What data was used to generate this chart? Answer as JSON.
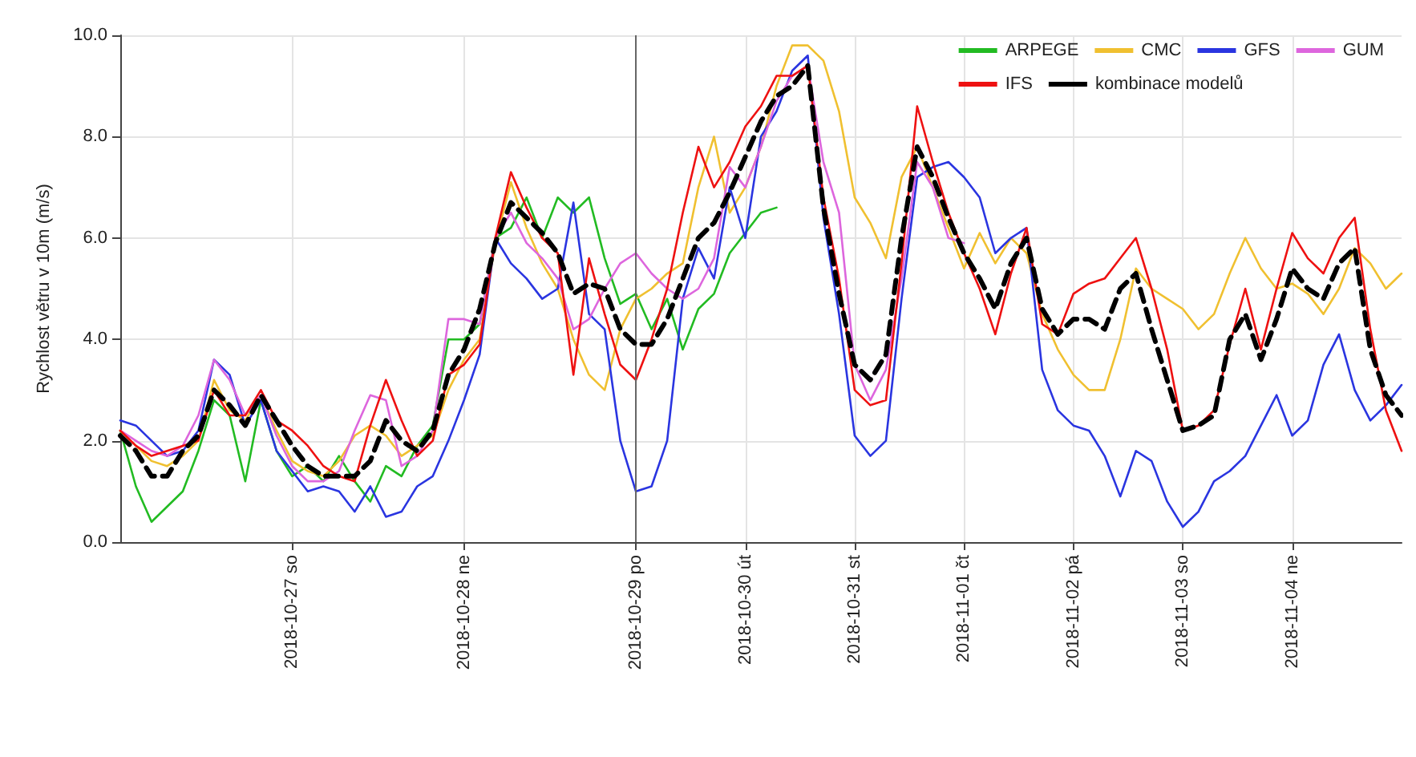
{
  "chart_data": {
    "type": "line",
    "ylabel": "Rychlost větru v 10m (m/s)",
    "categories": [
      null,
      null,
      null,
      null,
      null,
      null,
      null,
      null,
      null,
      null,
      null,
      "2018-10-27 so",
      null,
      null,
      null,
      null,
      null,
      null,
      null,
      null,
      null,
      null,
      "2018-10-28 ne",
      null,
      null,
      null,
      null,
      null,
      null,
      null,
      null,
      null,
      null,
      "2018-10-29 po",
      null,
      null,
      null,
      null,
      null,
      null,
      "2018-10-30 út",
      null,
      null,
      null,
      null,
      null,
      null,
      "2018-10-31 st",
      null,
      null,
      null,
      null,
      null,
      null,
      "2018-11-01 čt",
      null,
      null,
      null,
      null,
      null,
      null,
      "2018-11-02 pá",
      null,
      null,
      null,
      null,
      null,
      null,
      "2018-11-03 so",
      null,
      null,
      null,
      null,
      null,
      null,
      "2018-11-04 ne",
      null,
      null,
      null,
      null,
      null,
      null,
      null
    ],
    "series": [
      {
        "name": "ARPEGE",
        "color": "#22bb22",
        "values": [
          2.2,
          1.1,
          0.4,
          0.7,
          1.0,
          1.8,
          2.8,
          2.5,
          1.2,
          2.8,
          1.8,
          1.3,
          1.5,
          1.2,
          1.7,
          1.2,
          0.8,
          1.5,
          1.3,
          1.9,
          2.3,
          4.0,
          4.0,
          4.3,
          6.0,
          6.2,
          6.8,
          6.0,
          6.8,
          6.5,
          6.8,
          5.6,
          4.7,
          4.9,
          4.2,
          4.8,
          3.8,
          4.6,
          4.9,
          5.7,
          6.1,
          6.5,
          6.6,
          null,
          null,
          null,
          null,
          null,
          null,
          null,
          null,
          null,
          null,
          null,
          null,
          null,
          null,
          null,
          null,
          null,
          null,
          null,
          null,
          null,
          null,
          null,
          null,
          null,
          null,
          null,
          null,
          null,
          null,
          null,
          null,
          null,
          null,
          null,
          null,
          null,
          null,
          null,
          null
        ]
      },
      {
        "name": "CMC",
        "color": "#f0c030",
        "values": [
          2.2,
          1.9,
          1.6,
          1.5,
          1.7,
          2.0,
          3.2,
          2.6,
          2.4,
          2.9,
          2.2,
          1.6,
          1.4,
          1.3,
          1.6,
          2.1,
          2.3,
          2.1,
          1.7,
          1.9,
          2.1,
          3.0,
          3.6,
          4.0,
          5.9,
          7.1,
          6.2,
          5.5,
          5.0,
          4.0,
          3.3,
          3.0,
          4.2,
          4.8,
          5.0,
          5.3,
          5.5,
          7.0,
          8.0,
          6.5,
          7.0,
          7.8,
          9.0,
          9.8,
          9.8,
          9.5,
          8.5,
          6.8,
          6.3,
          5.6,
          7.2,
          7.8,
          7.0,
          6.2,
          5.4,
          6.1,
          5.5,
          6.0,
          5.7,
          4.5,
          3.8,
          3.3,
          3.0,
          3.0,
          4.0,
          5.4,
          5.0,
          4.8,
          4.6,
          4.2,
          4.5,
          5.3,
          6.0,
          5.4,
          5.0,
          5.1,
          4.9,
          4.5,
          5.0,
          5.8,
          5.5,
          5.0,
          5.3
        ]
      },
      {
        "name": "GFS",
        "color": "#2a35e0",
        "values": [
          2.4,
          2.3,
          2.0,
          1.7,
          1.8,
          2.2,
          3.6,
          3.3,
          2.3,
          2.8,
          1.8,
          1.4,
          1.0,
          1.1,
          1.0,
          0.6,
          1.1,
          0.5,
          0.6,
          1.1,
          1.3,
          2.0,
          2.8,
          3.7,
          6.0,
          5.5,
          5.2,
          4.8,
          5.0,
          6.7,
          4.5,
          4.2,
          2.0,
          1.0,
          1.1,
          2.0,
          4.8,
          5.8,
          5.2,
          7.0,
          6.0,
          8.0,
          8.5,
          9.3,
          9.6,
          6.4,
          4.5,
          2.1,
          1.7,
          2.0,
          4.8,
          7.2,
          7.4,
          7.5,
          7.2,
          6.8,
          5.7,
          6.0,
          6.2,
          3.4,
          2.6,
          2.3,
          2.2,
          1.7,
          0.9,
          1.8,
          1.6,
          0.8,
          0.3,
          0.6,
          1.2,
          1.4,
          1.7,
          2.3,
          2.9,
          2.1,
          2.4,
          3.5,
          4.1,
          3.0,
          2.4,
          2.7,
          3.1
        ]
      },
      {
        "name": "GUM",
        "color": "#dd66dd",
        "values": [
          2.2,
          2.0,
          1.8,
          1.7,
          1.9,
          2.5,
          3.6,
          3.2,
          2.5,
          2.9,
          2.1,
          1.5,
          1.2,
          1.2,
          1.4,
          2.2,
          2.9,
          2.8,
          1.5,
          1.7,
          2.2,
          4.4,
          4.4,
          4.3,
          6.0,
          6.5,
          5.9,
          5.6,
          5.2,
          4.2,
          4.4,
          5.0,
          5.5,
          5.7,
          5.3,
          5.0,
          4.8,
          5.0,
          5.6,
          7.4,
          7.0,
          7.8,
          8.7,
          9.2,
          9.4,
          7.5,
          6.5,
          3.5,
          2.8,
          3.4,
          5.2,
          7.5,
          7.0,
          6.0,
          5.9,
          null,
          null,
          null,
          null,
          null,
          null,
          null,
          null,
          null,
          null,
          null,
          null,
          null,
          null,
          null,
          null,
          null,
          null,
          null,
          null,
          null,
          null,
          null,
          null,
          null,
          null,
          null,
          null
        ]
      },
      {
        "name": "IFS",
        "color": "#ee1111",
        "values": [
          2.2,
          1.9,
          1.7,
          1.8,
          1.9,
          2.0,
          3.0,
          2.5,
          2.5,
          3.0,
          2.4,
          2.2,
          1.9,
          1.5,
          1.3,
          1.2,
          2.3,
          3.2,
          2.4,
          1.7,
          2.0,
          3.3,
          3.5,
          3.9,
          6.0,
          7.3,
          6.6,
          6.0,
          5.7,
          3.3,
          5.6,
          4.5,
          3.5,
          3.2,
          4.0,
          5.0,
          6.5,
          7.8,
          7.0,
          7.5,
          8.2,
          8.6,
          9.2,
          9.2,
          9.4,
          6.8,
          5.2,
          3.0,
          2.7,
          2.8,
          5.5,
          8.6,
          7.5,
          6.5,
          5.7,
          5.0,
          4.1,
          5.3,
          6.2,
          4.3,
          4.1,
          4.9,
          5.1,
          5.2,
          5.6,
          6.0,
          5.0,
          3.8,
          2.2,
          2.3,
          2.6,
          3.9,
          5.0,
          3.8,
          5.0,
          6.1,
          5.6,
          5.3,
          6.0,
          6.4,
          4.2,
          2.6,
          1.8
        ]
      },
      {
        "name": "kombinace modelů",
        "color": "#000000",
        "line_style": "dashed",
        "values": [
          2.1,
          1.8,
          1.3,
          1.3,
          1.8,
          2.1,
          3.0,
          2.7,
          2.3,
          2.9,
          2.4,
          1.9,
          1.5,
          1.3,
          1.3,
          1.3,
          1.6,
          2.4,
          2.0,
          1.8,
          2.2,
          3.3,
          3.8,
          4.6,
          5.9,
          6.7,
          6.4,
          6.1,
          5.7,
          4.9,
          5.1,
          5.0,
          4.2,
          3.9,
          3.9,
          4.4,
          5.2,
          6.0,
          6.3,
          6.9,
          7.6,
          8.3,
          8.8,
          9.0,
          9.4,
          6.6,
          4.9,
          3.5,
          3.2,
          3.7,
          6.0,
          7.8,
          7.2,
          6.4,
          5.7,
          5.2,
          4.6,
          5.5,
          6.0,
          4.6,
          4.1,
          4.4,
          4.4,
          4.2,
          5.0,
          5.3,
          4.2,
          3.2,
          2.2,
          2.3,
          2.5,
          4.0,
          4.5,
          3.6,
          4.4,
          5.4,
          5.0,
          4.8,
          5.5,
          5.8,
          3.8,
          2.9,
          2.5
        ]
      }
    ],
    "ylim": [
      0,
      10
    ],
    "yticks": [
      {
        "value": 0,
        "label": "0.0"
      },
      {
        "value": 2,
        "label": "2.0"
      },
      {
        "value": 4,
        "label": "4.0"
      },
      {
        "value": 6,
        "label": "6.0"
      },
      {
        "value": 8,
        "label": "8.0"
      },
      {
        "value": 10,
        "label": "10.0"
      }
    ],
    "ref_lines": [
      {
        "axis": "x",
        "value": "2018-10-29 po",
        "color": "#666666"
      }
    ],
    "grid": true,
    "legend": "top right",
    "line_style": "solid",
    "marker": "none"
  }
}
